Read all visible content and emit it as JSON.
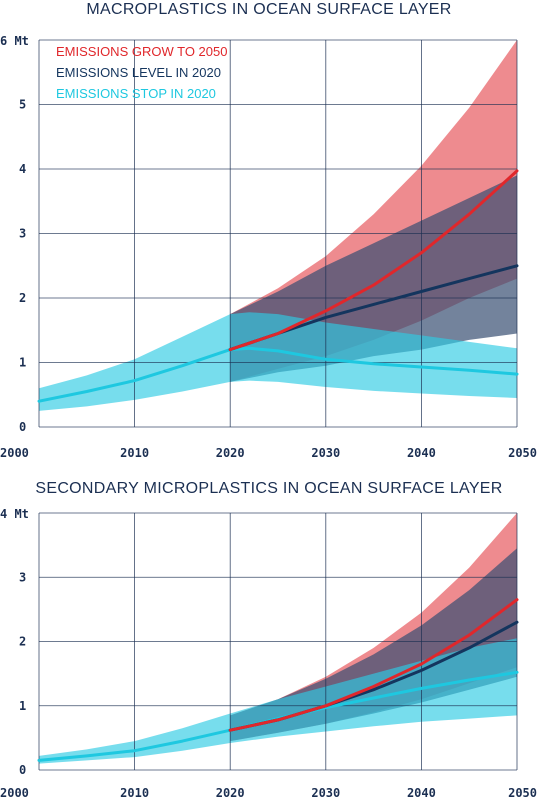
{
  "colors": {
    "grow": "#e0272b",
    "grow_band": "#e8646a",
    "level": "#14355e",
    "level_band": "#384e72",
    "stop": "#1ec8e0",
    "stop_band": "#2ecbe3",
    "text": "#1b2f52"
  },
  "chart_data": [
    {
      "type": "area",
      "title": "MACROPLASTICS IN OCEAN SURFACE LAYER",
      "y_unit_label": "6 Mt",
      "xlim": [
        2000,
        2050
      ],
      "ylim": [
        0,
        6
      ],
      "x_ticks": [
        "2000",
        "2010",
        "2020",
        "2030",
        "2040",
        "2050"
      ],
      "y_ticks": [
        "0",
        "1",
        "2",
        "3",
        "4",
        "5"
      ],
      "grid": true,
      "legend_position": "top-left",
      "legend": [
        "EMISSIONS GROW TO 2050",
        "EMISSIONS LEVEL IN 2020",
        "EMISSIONS STOP IN 2020"
      ],
      "series": [
        {
          "name": "EMISSIONS GROW TO 2050",
          "color_key": "grow",
          "x": [
            2020,
            2025,
            2030,
            2035,
            2040,
            2045,
            2050
          ],
          "y": [
            1.2,
            1.45,
            1.8,
            2.2,
            2.7,
            3.3,
            3.97
          ],
          "lower": [
            0.7,
            0.9,
            1.1,
            1.35,
            1.65,
            2.0,
            2.3
          ],
          "upper": [
            1.75,
            2.15,
            2.65,
            3.3,
            4.05,
            4.95,
            6.0
          ]
        },
        {
          "name": "EMISSIONS LEVEL IN 2020",
          "color_key": "level",
          "x": [
            2020,
            2025,
            2030,
            2035,
            2040,
            2045,
            2050
          ],
          "y": [
            1.2,
            1.45,
            1.7,
            1.9,
            2.1,
            2.3,
            2.5
          ],
          "lower": [
            0.7,
            0.85,
            0.95,
            1.1,
            1.2,
            1.35,
            1.45
          ],
          "upper": [
            1.75,
            2.1,
            2.5,
            2.85,
            3.2,
            3.55,
            3.9
          ]
        },
        {
          "name": "EMISSIONS STOP IN 2020",
          "color_key": "stop",
          "x": [
            2000,
            2005,
            2010,
            2015,
            2020,
            2022,
            2025,
            2030,
            2035,
            2040,
            2045,
            2050
          ],
          "y": [
            0.4,
            0.55,
            0.72,
            0.95,
            1.2,
            1.22,
            1.18,
            1.05,
            0.98,
            0.93,
            0.88,
            0.82
          ],
          "lower": [
            0.25,
            0.32,
            0.42,
            0.55,
            0.7,
            0.72,
            0.7,
            0.62,
            0.56,
            0.52,
            0.48,
            0.45
          ],
          "upper": [
            0.6,
            0.8,
            1.05,
            1.4,
            1.75,
            1.78,
            1.75,
            1.62,
            1.52,
            1.42,
            1.32,
            1.22
          ]
        }
      ]
    },
    {
      "type": "area",
      "title": "SECONDARY MICROPLASTICS IN OCEAN SURFACE LAYER",
      "y_unit_label": "4 Mt",
      "xlim": [
        2000,
        2050
      ],
      "ylim": [
        0,
        4
      ],
      "x_ticks": [
        "2000",
        "2010",
        "2020",
        "2030",
        "2040",
        "2050"
      ],
      "y_ticks": [
        "0",
        "1",
        "2",
        "3"
      ],
      "grid": true,
      "series": [
        {
          "name": "EMISSIONS GROW TO 2050",
          "color_key": "grow",
          "x": [
            2020,
            2025,
            2030,
            2035,
            2040,
            2045,
            2050
          ],
          "y": [
            0.62,
            0.78,
            1.0,
            1.3,
            1.65,
            2.1,
            2.65
          ],
          "lower": [
            0.45,
            0.58,
            0.72,
            0.9,
            1.1,
            1.35,
            1.6
          ],
          "upper": [
            0.85,
            1.1,
            1.45,
            1.9,
            2.45,
            3.15,
            4.0
          ]
        },
        {
          "name": "EMISSIONS LEVEL IN 2020",
          "color_key": "level",
          "x": [
            2020,
            2025,
            2030,
            2035,
            2040,
            2045,
            2050
          ],
          "y": [
            0.62,
            0.78,
            1.0,
            1.25,
            1.55,
            1.9,
            2.3
          ],
          "lower": [
            0.45,
            0.58,
            0.72,
            0.88,
            1.05,
            1.25,
            1.45
          ],
          "upper": [
            0.85,
            1.1,
            1.42,
            1.8,
            2.25,
            2.8,
            3.45
          ]
        },
        {
          "name": "EMISSIONS STOP IN 2020",
          "color_key": "stop",
          "x": [
            2000,
            2005,
            2010,
            2015,
            2020,
            2025,
            2030,
            2035,
            2040,
            2045,
            2050
          ],
          "y": [
            0.15,
            0.22,
            0.3,
            0.45,
            0.62,
            0.8,
            0.97,
            1.12,
            1.27,
            1.4,
            1.52
          ],
          "lower": [
            0.1,
            0.15,
            0.2,
            0.3,
            0.42,
            0.52,
            0.6,
            0.68,
            0.75,
            0.8,
            0.85
          ],
          "upper": [
            0.22,
            0.32,
            0.45,
            0.65,
            0.88,
            1.1,
            1.3,
            1.5,
            1.7,
            1.9,
            2.05
          ]
        }
      ]
    }
  ]
}
